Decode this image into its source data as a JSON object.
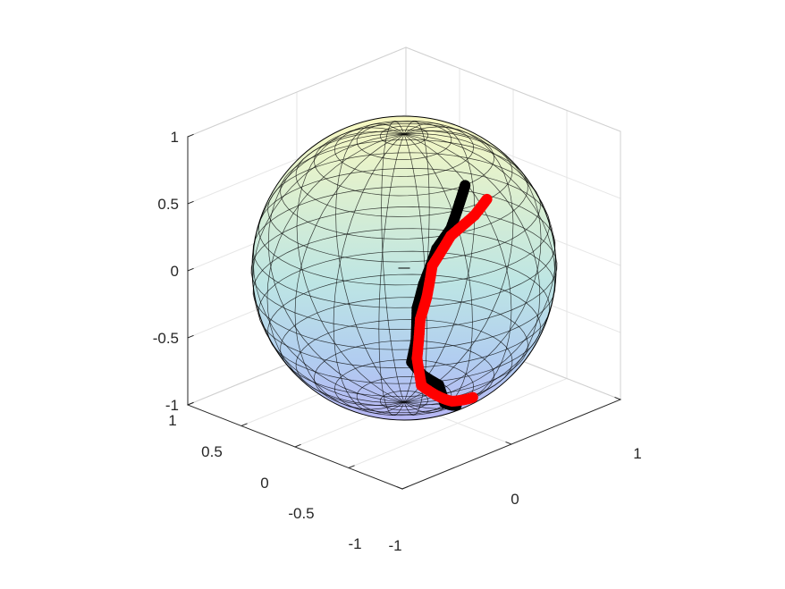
{
  "chart_data": {
    "type": "scatter",
    "projection": "3d",
    "title": "",
    "xlabel": "",
    "ylabel": "",
    "zlabel": "",
    "xlim": [
      -1,
      1
    ],
    "ylim": [
      -1,
      1
    ],
    "zlim": [
      -1,
      1
    ],
    "x_ticks": [
      "-1",
      "0",
      "1"
    ],
    "y_ticks": [
      "-1",
      "-0.5",
      "0",
      "0.5",
      "1"
    ],
    "z_ticks": [
      "-1",
      "-0.5",
      "0",
      "0.5",
      "1"
    ],
    "grid": true,
    "surface": {
      "shape": "unit-sphere",
      "colormap": "parula",
      "alpha": 0.3,
      "mesh_color": "#000000"
    },
    "series": [
      {
        "color": "#000000",
        "points": [
          [
            -0.02,
            -0.59,
            0.81
          ],
          [
            -0.14,
            -0.66,
            0.74
          ],
          [
            -0.29,
            -0.73,
            0.62
          ],
          [
            -0.43,
            -0.74,
            0.52
          ],
          [
            -0.57,
            -0.76,
            0.31
          ],
          [
            -0.63,
            -0.76,
            0.15
          ],
          [
            -0.64,
            -0.76,
            -0.09
          ],
          [
            -0.64,
            -0.72,
            -0.26
          ],
          [
            -0.56,
            -0.74,
            -0.38
          ],
          [
            -0.43,
            -0.76,
            -0.49
          ],
          [
            -0.27,
            -0.65,
            -0.71
          ],
          [
            -0.08,
            -0.57,
            -0.82
          ]
        ]
      },
      {
        "color": "#ff0000",
        "points": [
          [
            0.07,
            -0.7,
            0.71
          ],
          [
            -0.09,
            -0.75,
            0.66
          ],
          [
            -0.31,
            -0.75,
            0.58
          ],
          [
            -0.49,
            -0.76,
            0.42
          ],
          [
            -0.57,
            -0.79,
            0.22
          ],
          [
            -0.62,
            -0.78,
            0.07
          ],
          [
            -0.62,
            -0.75,
            -0.23
          ],
          [
            -0.53,
            -0.7,
            -0.48
          ],
          [
            -0.22,
            -0.67,
            -0.71
          ],
          [
            -0.02,
            -0.66,
            -0.75
          ]
        ]
      }
    ]
  }
}
